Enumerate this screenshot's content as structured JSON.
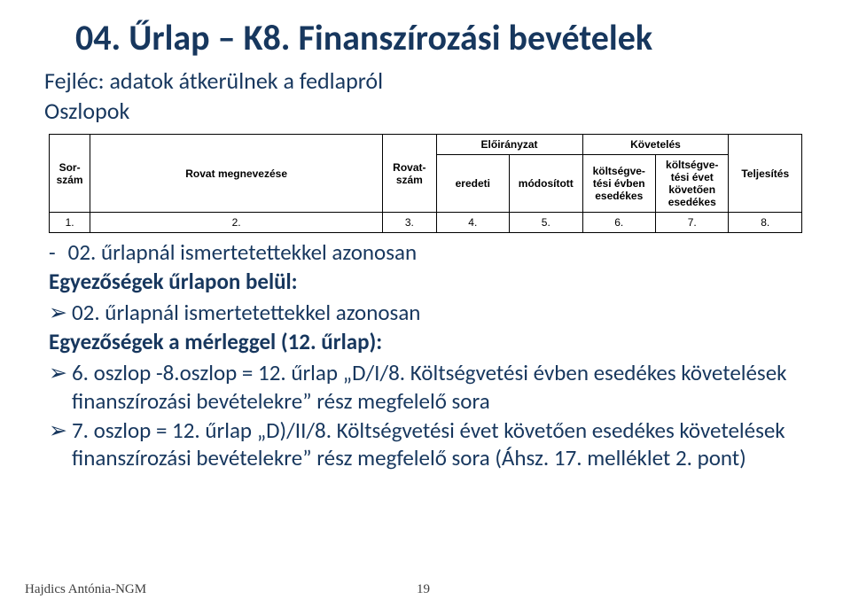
{
  "title": "04. Űrlap – K8. Finanszírozási bevételek",
  "sub1": "Fejléc: adatok átkerülnek a fedlapról",
  "sub2": "Oszlopok",
  "table": {
    "h_sorszam": "Sor-szám",
    "h_rovatmeg": "Rovat megnevezése",
    "h_rovatszam": "Rovat-szám",
    "h_eloiranyzat": "Előirányzat",
    "h_koveteles": "Követelés",
    "h_eredeti": "eredeti",
    "h_modositott": "módosított",
    "h_kv_evben": "költségve-tési évben esedékes",
    "h_kv_kovetoen": "költségve-tési évet követően esedékes",
    "h_teljesites": "Teljesítés",
    "nums": [
      "1.",
      "2.",
      "3.",
      "4.",
      "5.",
      "6.",
      "7.",
      "8."
    ]
  },
  "line1": "02. űrlapnál ismertetettekkel azonosan",
  "heading1": "Egyezőségek űrlapon belül:",
  "bullet1": "02. űrlapnál ismertetettekkel azonosan",
  "heading2": "Egyezőségek  a mérleggel (12. űrlap):",
  "bullet2": "6. oszlop -8.oszlop = 12. űrlap „D/I/8. Költségvetési évben esedékes követelések finanszírozási bevételekre” rész megfelelő sora",
  "bullet3": "7. oszlop = 12. űrlap „D)/II/8. Költségvetési évet követően esedékes követelések finanszírozási bevételekre” rész megfelelő sora (Áhsz. 17. melléklet  2. pont)",
  "footer_author": "Hajdics Antónia-NGM",
  "footer_page": "19",
  "colors": {
    "heading": "#17375e",
    "text": "#17375e",
    "footer": "#404040",
    "border": "#000000",
    "bg": "#ffffff"
  }
}
